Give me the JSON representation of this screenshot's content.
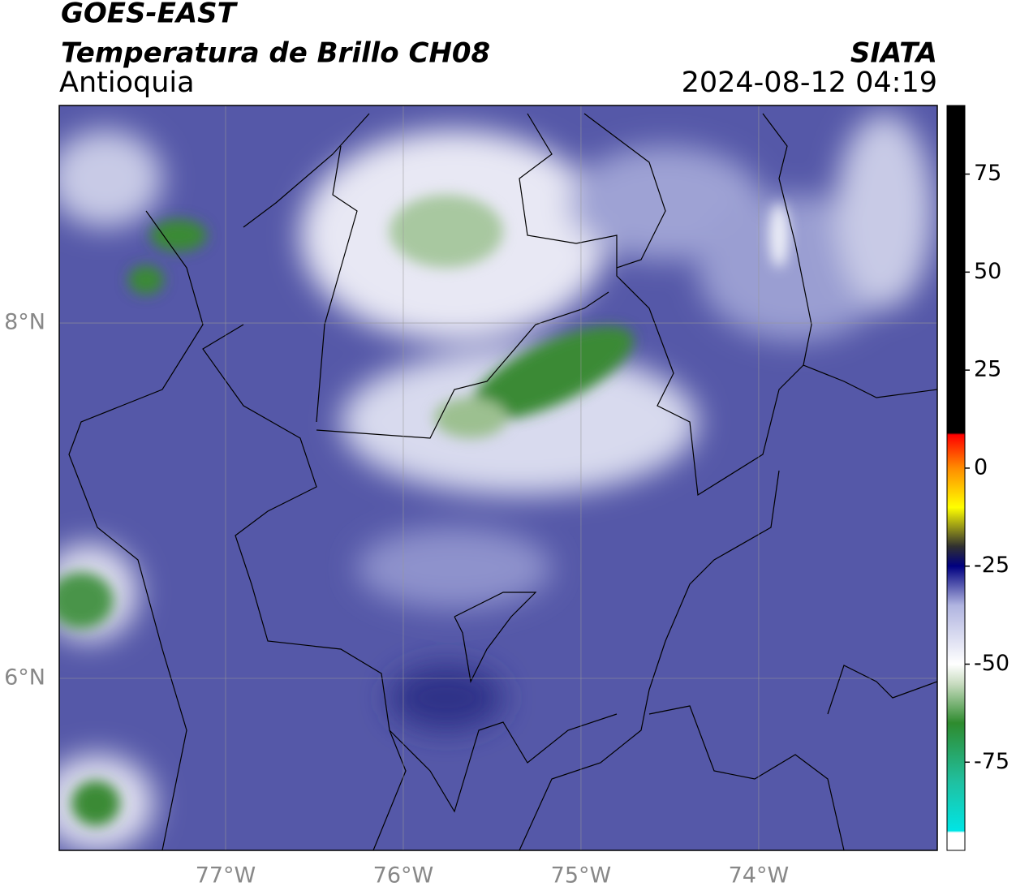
{
  "header": {
    "title": "GOES-EAST",
    "subtitle": "Temperatura de Brillo CH08",
    "region": "Antioquia",
    "source": "SIATA",
    "datetime": "2024-08-12 04:19"
  },
  "map": {
    "lonlim": [
      -77.936,
      -72.995
    ],
    "latlim": [
      5.032,
      9.224
    ],
    "lon_ticks": [
      {
        "value": -77,
        "label": "77°W"
      },
      {
        "value": -76,
        "label": "76°W"
      },
      {
        "value": -75,
        "label": "75°W"
      },
      {
        "value": -74,
        "label": "74°W"
      }
    ],
    "lat_ticks": [
      {
        "value": 8,
        "label": "8°N"
      },
      {
        "value": 6,
        "label": "6°N"
      }
    ]
  },
  "colorbar": {
    "lim": [
      -97.5,
      92.5
    ],
    "ticks": [
      75,
      50,
      25,
      0,
      -25,
      -50,
      -75
    ],
    "colors": [
      {
        "value": 92.5,
        "color": "#000000"
      },
      {
        "value": 9,
        "color": "#000000"
      },
      {
        "value": 8.5,
        "color": "#ff0000"
      },
      {
        "value": 0,
        "color": "#ff8c00"
      },
      {
        "value": -10,
        "color": "#ffff00"
      },
      {
        "value": -20,
        "color": "#303030"
      },
      {
        "value": -25,
        "color": "#000080"
      },
      {
        "value": -35,
        "color": "#b0b4e0"
      },
      {
        "value": -50,
        "color": "#ffffff"
      },
      {
        "value": -55,
        "color": "#c8dcc0"
      },
      {
        "value": -65,
        "color": "#2e8b2e"
      },
      {
        "value": -80,
        "color": "#20c0a0"
      },
      {
        "value": -92.5,
        "color": "#00e5e5"
      },
      {
        "value": -93,
        "color": "#ffffff"
      },
      {
        "value": -97.5,
        "color": "#ffffff"
      }
    ]
  }
}
